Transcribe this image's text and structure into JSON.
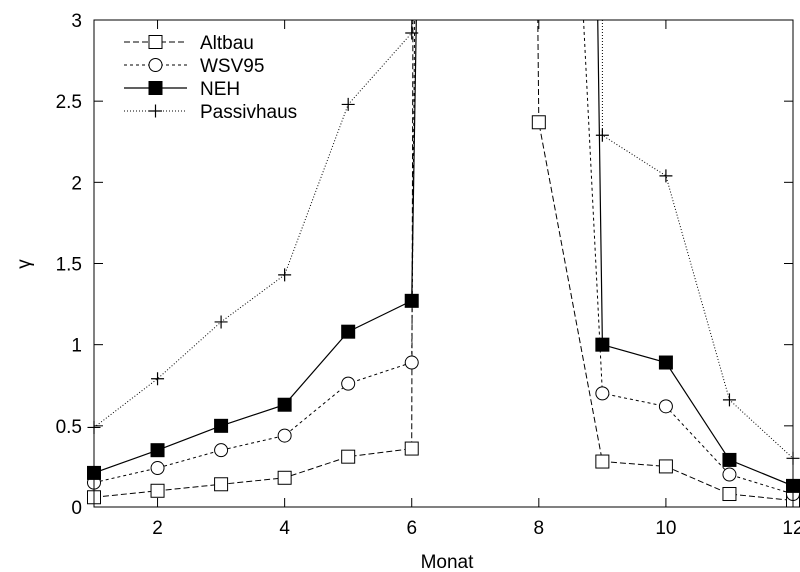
{
  "chart_data": {
    "type": "line",
    "xlabel": "Monat",
    "ylabel": "γ",
    "xlim": [
      1,
      12
    ],
    "ylim": [
      0,
      3
    ],
    "x_ticks": [
      2,
      4,
      6,
      8,
      10,
      12
    ],
    "x_tick_labels": [
      "2",
      "4",
      "6",
      "8",
      "10",
      "12"
    ],
    "y_ticks": [
      0,
      0.5,
      1,
      1.5,
      2,
      2.5,
      3
    ],
    "y_tick_labels": [
      "0",
      "0.5",
      "1",
      "1.5",
      "2",
      "2.5",
      "3"
    ],
    "grid": false,
    "legend_position": "top-left",
    "series": [
      {
        "name": "Altbau",
        "marker": "open-square",
        "dash": "dashed",
        "x": [
          1,
          2,
          3,
          4,
          5,
          6,
          8,
          9,
          10,
          11,
          12
        ],
        "values": [
          0.06,
          0.1,
          0.14,
          0.18,
          0.31,
          0.36,
          2.37,
          0.28,
          0.25,
          0.08,
          0.04
        ]
      },
      {
        "name": "WSV95",
        "marker": "open-circle",
        "dash": "dotted",
        "x": [
          1,
          2,
          3,
          4,
          5,
          6,
          9,
          10,
          11,
          12
        ],
        "values": [
          0.15,
          0.24,
          0.35,
          0.44,
          0.76,
          0.89,
          0.7,
          0.62,
          0.2,
          0.08
        ]
      },
      {
        "name": "NEH",
        "marker": "filled-square",
        "dash": "solid",
        "x": [
          1,
          2,
          3,
          4,
          5,
          6,
          9,
          10,
          11,
          12
        ],
        "values": [
          0.21,
          0.35,
          0.5,
          0.63,
          1.08,
          1.27,
          1.0,
          0.89,
          0.29,
          0.13
        ]
      },
      {
        "name": "Passivhaus",
        "marker": "plus",
        "dash": "fine-dotted",
        "x": [
          1,
          2,
          3,
          4,
          5,
          6,
          9,
          10,
          11,
          12
        ],
        "values": [
          0.49,
          0.79,
          1.14,
          1.43,
          2.48,
          2.92,
          2.29,
          2.04,
          0.66,
          0.3
        ]
      }
    ]
  }
}
